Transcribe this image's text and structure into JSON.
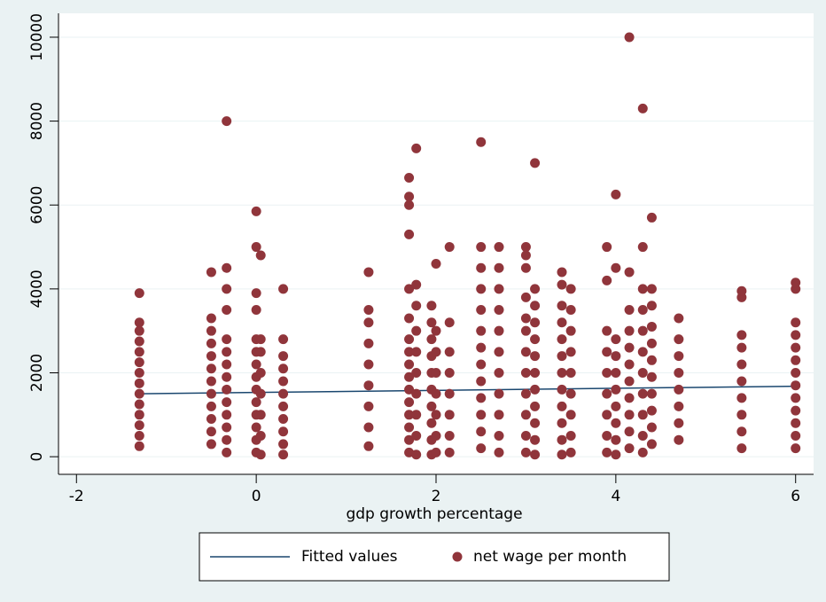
{
  "chart_data": {
    "type": "scatter",
    "x_label": "gdp growth percentage",
    "xlim": [
      -2.2,
      6.2
    ],
    "xticks": [
      -2,
      0,
      2,
      4,
      6
    ],
    "ylim": [
      -420,
      10570
    ],
    "yticks": [
      0,
      2000,
      4000,
      6000,
      8000,
      10000
    ],
    "grid": true,
    "series": [
      {
        "name": "Fitted values",
        "type": "line",
        "color": "#1a476f",
        "x": [
          -1.3,
          6
        ],
        "values": [
          1500,
          1680
        ]
      },
      {
        "name": "net wage per month",
        "type": "scatter",
        "color": "#90353b",
        "x": [
          -1.3,
          -1.3,
          -1.3,
          -1.3,
          -1.3,
          -1.3,
          -1.3,
          -1.3,
          -1.3,
          -1.3,
          -1.3,
          -1.3,
          -1.3,
          -1.3,
          -0.5,
          -0.5,
          -0.5,
          -0.5,
          -0.5,
          -0.5,
          -0.5,
          -0.5,
          -0.5,
          -0.5,
          -0.5,
          -0.5,
          -0.33,
          -0.33,
          -0.33,
          -0.33,
          -0.33,
          -0.33,
          -0.33,
          -0.33,
          -0.33,
          -0.33,
          -0.33,
          -0.33,
          -0.33,
          -0.33,
          0,
          0,
          0,
          0,
          0,
          0,
          0,
          0,
          0,
          0,
          0,
          0,
          0,
          0,
          0.05,
          0.05,
          0.05,
          0.05,
          0.05,
          0.05,
          0.05,
          0.05,
          0.3,
          0.3,
          0.3,
          0.3,
          0.3,
          0.3,
          0.3,
          0.3,
          0.3,
          0.3,
          0.3,
          1.25,
          1.25,
          1.25,
          1.25,
          1.25,
          1.25,
          1.25,
          1.25,
          1.25,
          1.7,
          1.7,
          1.7,
          1.7,
          1.7,
          1.7,
          1.7,
          1.7,
          1.7,
          1.7,
          1.7,
          1.7,
          1.7,
          1.7,
          1.7,
          1.7,
          1.78,
          1.78,
          1.78,
          1.78,
          1.78,
          1.78,
          1.78,
          1.78,
          1.78,
          1.78,
          1.95,
          1.95,
          1.95,
          1.95,
          1.95,
          1.95,
          1.95,
          1.95,
          1.95,
          1.95,
          2.0,
          2.0,
          2.0,
          2.0,
          2.0,
          2.0,
          2.0,
          2.0,
          2.15,
          2.15,
          2.15,
          2.15,
          2.15,
          2.15,
          2.15,
          2.15,
          2.5,
          2.5,
          2.5,
          2.5,
          2.5,
          2.5,
          2.5,
          2.5,
          2.5,
          2.5,
          2.5,
          2.5,
          2.5,
          2.7,
          2.7,
          2.7,
          2.7,
          2.7,
          2.7,
          2.7,
          2.7,
          2.7,
          2.7,
          2.7,
          3.0,
          3.0,
          3.0,
          3.0,
          3.0,
          3.0,
          3.0,
          3.0,
          3.0,
          3.0,
          3.0,
          3.0,
          3.1,
          3.1,
          3.1,
          3.1,
          3.1,
          3.1,
          3.1,
          3.1,
          3.1,
          3.1,
          3.1,
          3.1,
          3.4,
          3.4,
          3.4,
          3.4,
          3.4,
          3.4,
          3.4,
          3.4,
          3.4,
          3.4,
          3.4,
          3.4,
          3.5,
          3.5,
          3.5,
          3.5,
          3.5,
          3.5,
          3.5,
          3.5,
          3.5,
          3.9,
          3.9,
          3.9,
          3.9,
          3.9,
          3.9,
          3.9,
          3.9,
          3.9,
          4.0,
          4.0,
          4.0,
          4.0,
          4.0,
          4.0,
          4.0,
          4.0,
          4.0,
          4.0,
          4.15,
          4.15,
          4.15,
          4.15,
          4.15,
          4.15,
          4.15,
          4.15,
          4.15,
          4.15,
          4.15,
          4.3,
          4.3,
          4.3,
          4.3,
          4.3,
          4.3,
          4.3,
          4.3,
          4.3,
          4.3,
          4.3,
          4.4,
          4.4,
          4.4,
          4.4,
          4.4,
          4.4,
          4.4,
          4.4,
          4.4,
          4.4,
          4.4,
          4.7,
          4.7,
          4.7,
          4.7,
          4.7,
          4.7,
          4.7,
          4.7,
          5.4,
          5.4,
          5.4,
          5.4,
          5.4,
          5.4,
          5.4,
          5.4,
          5.4,
          5.4,
          6.0,
          6.0,
          6.0,
          6.0,
          6.0,
          6.0,
          6.0,
          6.0,
          6.0,
          6.0,
          6.0,
          6.0,
          6.0
        ],
        "values": [
          250,
          500,
          750,
          1000,
          1250,
          1500,
          1750,
          2000,
          2250,
          2500,
          2750,
          3000,
          3200,
          3900,
          300,
          600,
          900,
          1200,
          1500,
          1800,
          2100,
          2400,
          2700,
          3000,
          3300,
          4400,
          100,
          400,
          700,
          1000,
          1300,
          1600,
          1900,
          2200,
          2500,
          2800,
          3500,
          4000,
          4500,
          8000,
          100,
          400,
          700,
          1000,
          1300,
          1600,
          1900,
          2200,
          2500,
          2800,
          3500,
          3900,
          5000,
          5850,
          50,
          500,
          1000,
          1500,
          2000,
          2500,
          2800,
          4800,
          50,
          300,
          600,
          900,
          1200,
          1500,
          1800,
          2100,
          2400,
          2800,
          4000,
          250,
          700,
          1200,
          1700,
          2200,
          2700,
          3200,
          3500,
          4400,
          100,
          400,
          700,
          1000,
          1300,
          1600,
          1900,
          2200,
          2500,
          2800,
          3300,
          4000,
          5300,
          6000,
          6200,
          6650,
          50,
          500,
          1000,
          1500,
          2000,
          2500,
          3000,
          3600,
          4100,
          7350,
          50,
          400,
          800,
          1200,
          1600,
          2000,
          2400,
          2800,
          3200,
          3600,
          100,
          500,
          1000,
          1500,
          2000,
          2500,
          3000,
          4600,
          100,
          500,
          1000,
          1500,
          2000,
          2500,
          3200,
          5000,
          200,
          600,
          1000,
          1400,
          1800,
          2200,
          2600,
          3000,
          3500,
          4000,
          4500,
          5000,
          7500,
          100,
          500,
          1000,
          1500,
          2000,
          2500,
          3000,
          3500,
          4000,
          4500,
          5000,
          100,
          500,
          1000,
          1500,
          2000,
          2500,
          3000,
          3300,
          3800,
          4500,
          4800,
          5000,
          50,
          400,
          800,
          1200,
          1600,
          2000,
          2400,
          2800,
          3200,
          3600,
          4000,
          7000,
          50,
          400,
          800,
          1200,
          1600,
          2000,
          2400,
          2800,
          3200,
          3600,
          4100,
          4400,
          100,
          500,
          1000,
          1500,
          2000,
          2500,
          3000,
          3500,
          4000,
          100,
          500,
          1000,
          1500,
          2000,
          2500,
          3000,
          4200,
          5000,
          50,
          400,
          800,
          1200,
          1600,
          2000,
          2400,
          2800,
          4500,
          6250,
          200,
          600,
          1000,
          1400,
          1800,
          2200,
          2600,
          3000,
          3500,
          4400,
          10000,
          100,
          500,
          1000,
          1500,
          2000,
          2500,
          3000,
          3500,
          4000,
          5000,
          8300,
          300,
          700,
          1100,
          1500,
          1900,
          2300,
          2700,
          3100,
          3600,
          4000,
          5700,
          400,
          800,
          1200,
          1600,
          2000,
          2400,
          2800,
          3300,
          200,
          600,
          1000,
          1400,
          1800,
          2200,
          2600,
          2900,
          3800,
          3950,
          200,
          500,
          800,
          1100,
          1400,
          1700,
          2000,
          2300,
          2600,
          2900,
          3200,
          4000,
          4150
        ]
      }
    ]
  }
}
